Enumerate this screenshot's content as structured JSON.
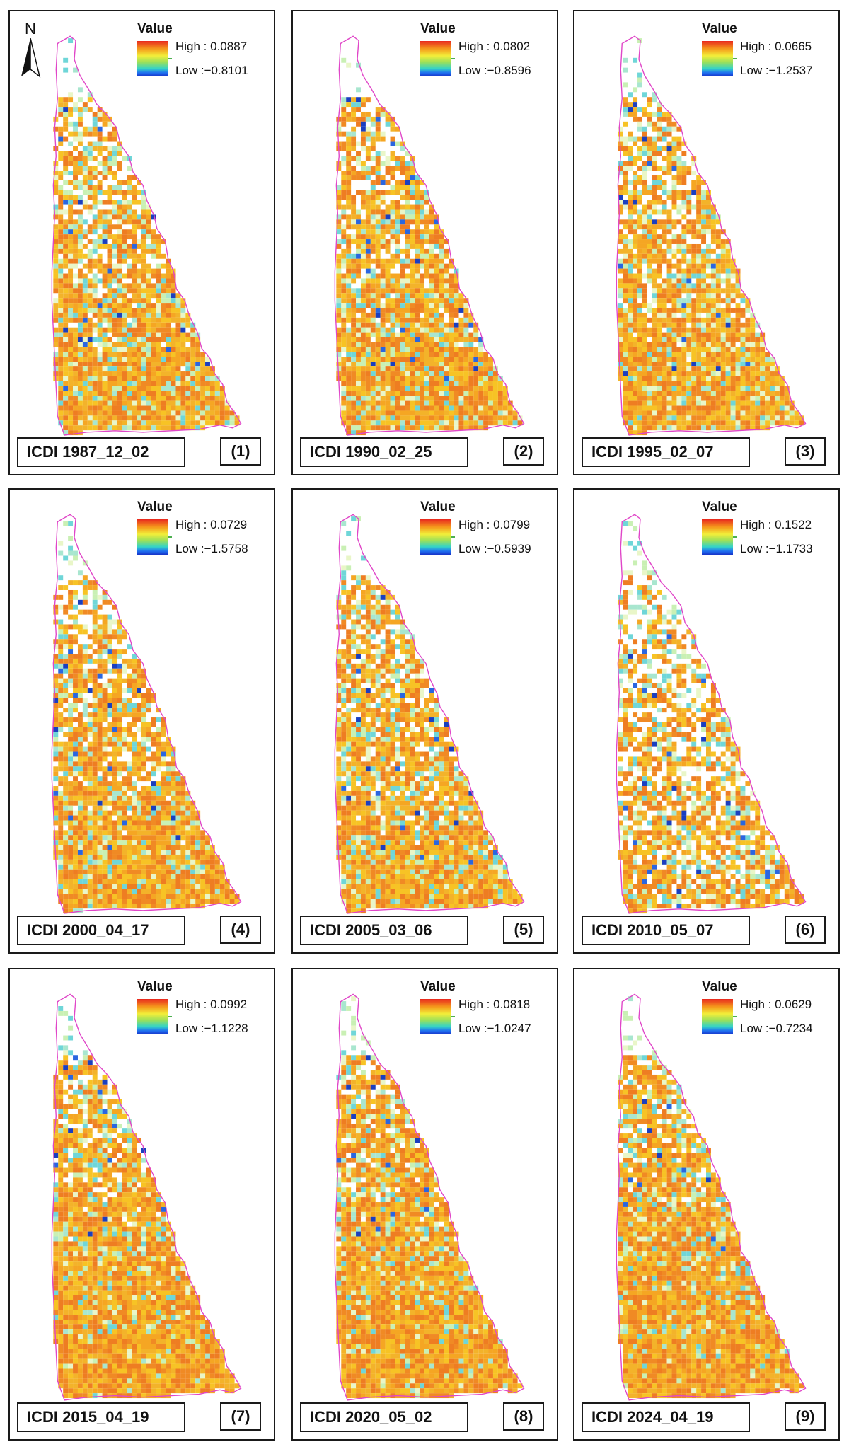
{
  "north_arrow": {
    "label": "N",
    "icon": "north-arrow-icon"
  },
  "legend_title": "Value",
  "colors": {
    "boundary": "#e046c8",
    "ramp_high": "#e8281e",
    "ramp_mid": "#f2ee3a",
    "ramp_low": "#1733c8"
  },
  "panels": [
    {
      "title": "ICDI 1987_12_02",
      "number": "(1)",
      "high": "High : 0.0887",
      "low": "Low :−0.8101",
      "high_value": 0.0887,
      "low_value": -0.8101
    },
    {
      "title": "ICDI 1990_02_25",
      "number": "(2)",
      "high": "High : 0.0802",
      "low": "Low :−0.8596",
      "high_value": 0.0802,
      "low_value": -0.8596
    },
    {
      "title": "ICDI 1995_02_07",
      "number": "(3)",
      "high": "High : 0.0665",
      "low": "Low :−1.2537",
      "high_value": 0.0665,
      "low_value": -1.2537
    },
    {
      "title": "ICDI 2000_04_17",
      "number": "(4)",
      "high": "High : 0.0729",
      "low": "Low :−1.5758",
      "high_value": 0.0729,
      "low_value": -1.5758
    },
    {
      "title": "ICDI 2005_03_06",
      "number": "(5)",
      "high": "High : 0.0799",
      "low": "Low :−0.5939",
      "high_value": 0.0799,
      "low_value": -0.5939
    },
    {
      "title": "ICDI 2010_05_07",
      "number": "(6)",
      "high": "High : 0.1522",
      "low": "Low :−1.1733",
      "high_value": 0.1522,
      "low_value": -1.1733
    },
    {
      "title": "ICDI 2015_04_19",
      "number": "(7)",
      "high": "High : 0.0992",
      "low": "Low :−1.1228",
      "high_value": 0.0992,
      "low_value": -1.1228
    },
    {
      "title": "ICDI 2020_05_02",
      "number": "(8)",
      "high": "High : 0.0818",
      "low": "Low :−1.0247",
      "high_value": 0.0818,
      "low_value": -1.0247
    },
    {
      "title": "ICDI 2024_04_19",
      "number": "(9)",
      "high": "High : 0.0629",
      "low": "Low :−0.7234",
      "high_value": 0.0629,
      "low_value": -0.7234
    }
  ]
}
